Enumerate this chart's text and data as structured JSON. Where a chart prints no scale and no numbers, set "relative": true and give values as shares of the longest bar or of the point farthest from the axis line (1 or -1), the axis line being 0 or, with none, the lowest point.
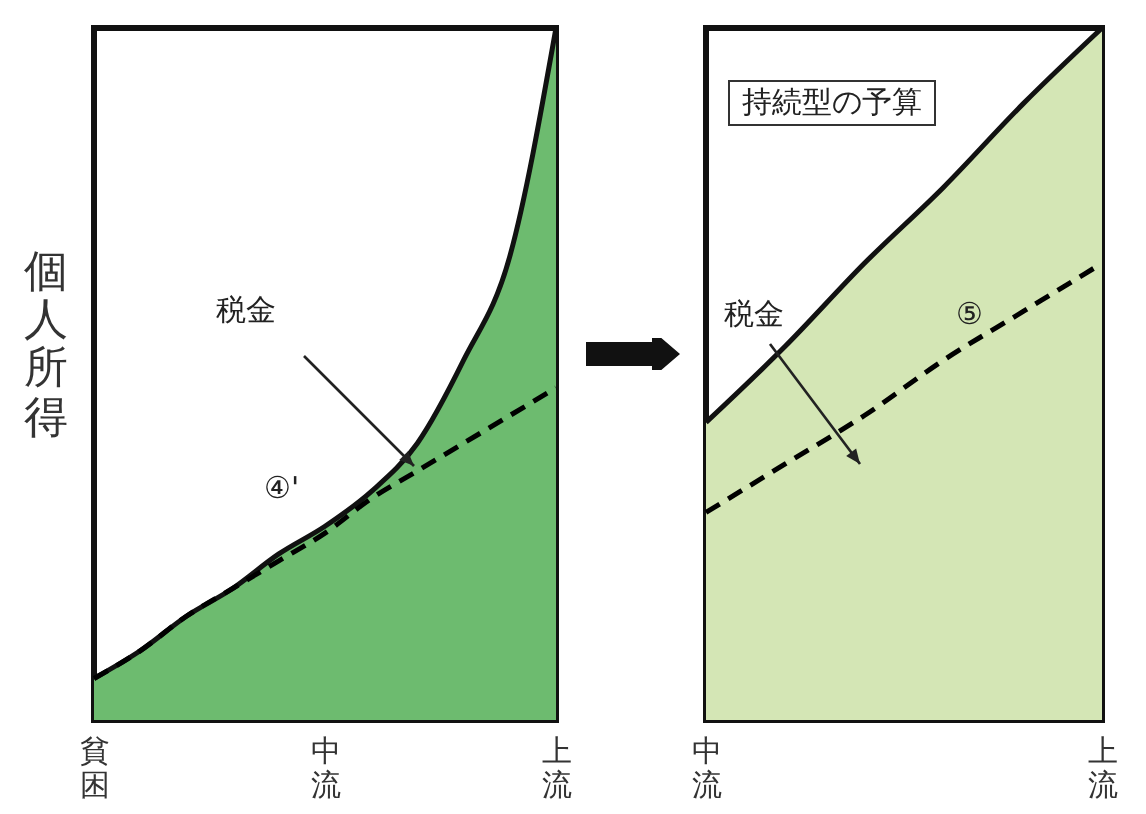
{
  "chart_data": [
    {
      "type": "area",
      "relative": true,
      "ylabel": "個人所得",
      "categories": [
        "貧困",
        null,
        null,
        null,
        null,
        "中流",
        null,
        null,
        null,
        null,
        "上流"
      ],
      "annotations": [
        "税金",
        "④'"
      ],
      "series": [
        {
          "type": "area",
          "color": "#6dbb6f",
          "values": [
            0.06,
            0.1,
            0.15,
            0.19,
            0.24,
            0.28,
            0.33,
            0.4,
            0.52,
            0.67,
            1
          ]
        },
        {
          "type": "line",
          "color": "#000000",
          "line_style": "dashed",
          "values": [
            0.06,
            0.1,
            0.15,
            0.19,
            0.23,
            0.27,
            0.32,
            0.36,
            0.4,
            0.44,
            0.48
          ]
        }
      ]
    },
    {
      "type": "area",
      "relative": true,
      "categories": [
        "中流",
        null,
        null,
        null,
        null,
        "上流"
      ],
      "annotations": [
        "持続型の予算",
        "税金",
        "⑤"
      ],
      "series": [
        {
          "type": "area",
          "color": "#d4e6b5",
          "values": [
            0.43,
            0.54,
            0.66,
            0.77,
            0.89,
            1
          ]
        },
        {
          "type": "line",
          "color": "#000000",
          "line_style": "dashed",
          "values": [
            0.3,
            0.37,
            0.44,
            0.52,
            0.59,
            0.66
          ]
        }
      ]
    }
  ]
}
